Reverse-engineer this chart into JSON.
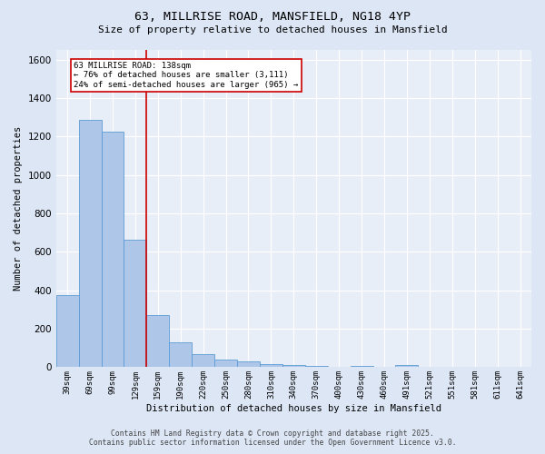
{
  "title_line1": "63, MILLRISE ROAD, MANSFIELD, NG18 4YP",
  "title_line2": "Size of property relative to detached houses in Mansfield",
  "xlabel": "Distribution of detached houses by size in Mansfield",
  "ylabel": "Number of detached properties",
  "categories": [
    "39sqm",
    "69sqm",
    "99sqm",
    "129sqm",
    "159sqm",
    "190sqm",
    "220sqm",
    "250sqm",
    "280sqm",
    "310sqm",
    "340sqm",
    "370sqm",
    "400sqm",
    "430sqm",
    "460sqm",
    "491sqm",
    "521sqm",
    "551sqm",
    "581sqm",
    "611sqm",
    "641sqm"
  ],
  "values": [
    375,
    1285,
    1225,
    665,
    270,
    130,
    68,
    38,
    28,
    18,
    10,
    5,
    3,
    5,
    0,
    10,
    0,
    0,
    0,
    0,
    0
  ],
  "bar_color": "#aec6e8",
  "bar_edge_color": "#5b9bd5",
  "bar_linewidth": 0.6,
  "red_line_x": 3.5,
  "red_line_color": "#cc0000",
  "annotation_text": "63 MILLRISE ROAD: 138sqm\n← 76% of detached houses are smaller (3,111)\n24% of semi-detached houses are larger (965) →",
  "annotation_box_color": "#ffffff",
  "annotation_box_edge_color": "#cc0000",
  "ylim": [
    0,
    1650
  ],
  "yticks": [
    0,
    200,
    400,
    600,
    800,
    1000,
    1200,
    1400,
    1600
  ],
  "background_color": "#dce6f5",
  "plot_bg_color": "#e8eef8",
  "grid_color": "#ffffff",
  "footer_line1": "Contains HM Land Registry data © Crown copyright and database right 2025.",
  "footer_line2": "Contains public sector information licensed under the Open Government Licence v3.0."
}
